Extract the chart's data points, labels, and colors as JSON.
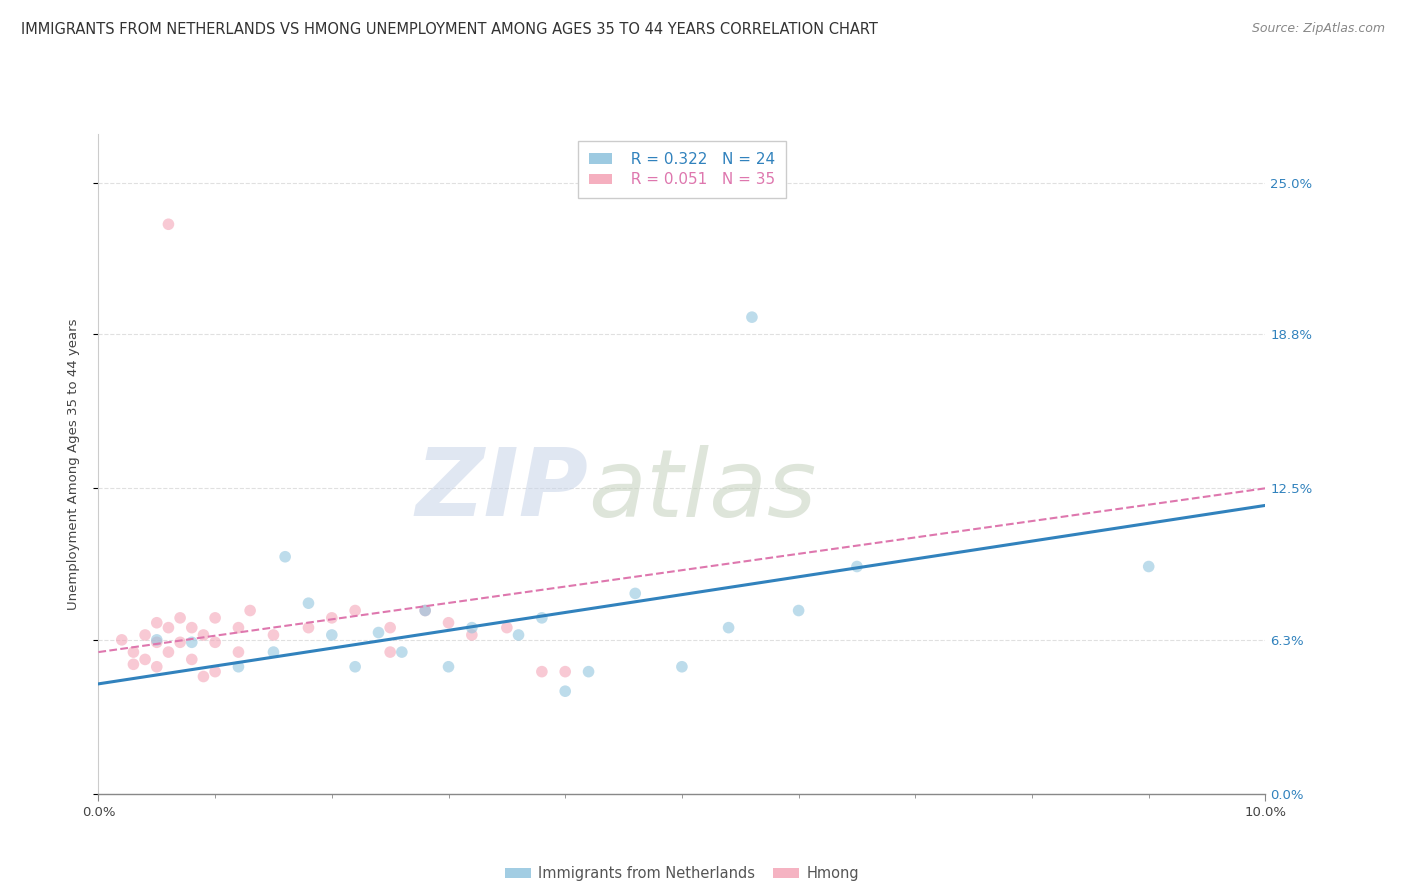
{
  "title": "IMMIGRANTS FROM NETHERLANDS VS HMONG UNEMPLOYMENT AMONG AGES 35 TO 44 YEARS CORRELATION CHART",
  "source": "Source: ZipAtlas.com",
  "ylabel": "Unemployment Among Ages 35 to 44 years",
  "xlim": [
    0.0,
    0.1
  ],
  "ylim": [
    0.0,
    0.27
  ],
  "ylabel_vals": [
    0.0,
    0.063,
    0.125,
    0.188,
    0.25
  ],
  "ylabel_labels": [
    "0.0%",
    "6.3%",
    "12.5%",
    "18.8%",
    "25.0%"
  ],
  "xlabel_vals": [
    0.0,
    0.1
  ],
  "xlabel_labels": [
    "0.0%",
    "10.0%"
  ],
  "xlabel_minor_vals": [
    0.01,
    0.02,
    0.03,
    0.04,
    0.05,
    0.06,
    0.07,
    0.08,
    0.09
  ],
  "legend1_r": "0.322",
  "legend1_n": "24",
  "legend2_r": "0.051",
  "legend2_n": "35",
  "blue_color": "#92c5de",
  "pink_color": "#f4a6b8",
  "blue_line_color": "#3182bd",
  "pink_line_color": "#de77ae",
  "text_blue": "#3182bd",
  "watermark_zip": "ZIP",
  "watermark_atlas": "atlas",
  "watermark_color": "#d0d8e8",
  "watermark_atlas_color": "#c8d4c0",
  "blue_scatter_x": [
    0.005,
    0.008,
    0.012,
    0.015,
    0.016,
    0.018,
    0.02,
    0.022,
    0.024,
    0.026,
    0.028,
    0.03,
    0.032,
    0.036,
    0.038,
    0.04,
    0.042,
    0.046,
    0.05,
    0.054,
    0.056,
    0.06,
    0.065,
    0.09
  ],
  "blue_scatter_y": [
    0.063,
    0.062,
    0.052,
    0.058,
    0.097,
    0.078,
    0.065,
    0.052,
    0.066,
    0.058,
    0.075,
    0.052,
    0.068,
    0.065,
    0.072,
    0.042,
    0.05,
    0.082,
    0.052,
    0.068,
    0.195,
    0.075,
    0.093,
    0.093
  ],
  "pink_scatter_x": [
    0.002,
    0.003,
    0.003,
    0.004,
    0.004,
    0.005,
    0.005,
    0.005,
    0.006,
    0.006,
    0.007,
    0.007,
    0.008,
    0.008,
    0.009,
    0.009,
    0.01,
    0.01,
    0.01,
    0.012,
    0.012,
    0.013,
    0.015,
    0.018,
    0.02,
    0.022,
    0.025,
    0.025,
    0.028,
    0.03,
    0.032,
    0.035,
    0.038,
    0.04,
    0.006
  ],
  "pink_scatter_y": [
    0.063,
    0.058,
    0.053,
    0.065,
    0.055,
    0.07,
    0.062,
    0.052,
    0.068,
    0.058,
    0.072,
    0.062,
    0.068,
    0.055,
    0.065,
    0.048,
    0.072,
    0.062,
    0.05,
    0.068,
    0.058,
    0.075,
    0.065,
    0.068,
    0.072,
    0.075,
    0.068,
    0.058,
    0.075,
    0.07,
    0.065,
    0.068,
    0.05,
    0.05,
    0.233
  ],
  "blue_trend_x0": 0.0,
  "blue_trend_x1": 0.1,
  "blue_trend_y0": 0.045,
  "blue_trend_y1": 0.118,
  "pink_trend_x0": 0.0,
  "pink_trend_x1": 0.1,
  "pink_trend_y0": 0.058,
  "pink_trend_y1": 0.125,
  "grid_color": "#e0e0e0",
  "bg_color": "#ffffff",
  "title_fontsize": 10.5,
  "source_fontsize": 9,
  "axis_label_fontsize": 9.5,
  "tick_fontsize": 9.5,
  "legend_fontsize": 11,
  "scatter_size": 70,
  "scatter_alpha": 0.6
}
